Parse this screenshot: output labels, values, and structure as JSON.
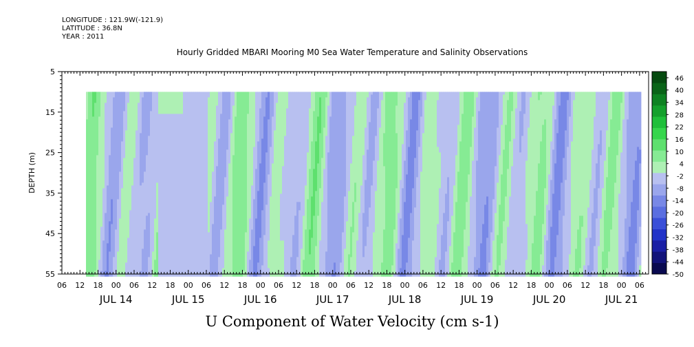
{
  "header": {
    "longitude": "LONGITUDE : 121.9W(-121.9)",
    "latitude": "LATITUDE : 36.8N",
    "year": "YEAR : 2011"
  },
  "chart_data": {
    "type": "heatmap",
    "title": "Hourly Gridded MBARI Mooring M0 Sea Water Temperature and Salinity Observations",
    "xlabel": "U Component of Water Velocity (cm s-1)",
    "ylabel": "DEPTH (m)",
    "ylim": [
      55,
      5
    ],
    "xlim": [
      "2011-07-13 06:00",
      "2011-07-21 09:00"
    ],
    "y_ticks": [
      "5",
      "15",
      "25",
      "35",
      "45",
      "55"
    ],
    "x_hour_labels": [
      "06",
      "12",
      "18",
      "00",
      "06",
      "12",
      "18",
      "00",
      "06",
      "12",
      "18",
      "00",
      "06",
      "12",
      "18",
      "00",
      "06",
      "12",
      "18",
      "00",
      "06",
      "12",
      "18",
      "00",
      "06",
      "12",
      "18",
      "00",
      "06",
      "12",
      "18",
      "00",
      "06"
    ],
    "x_day_labels": [
      "JUL 14",
      "JUL 15",
      "JUL 16",
      "JUL 17",
      "JUL 18",
      "JUL 19",
      "JUL 20",
      "JUL 21"
    ],
    "data_depth_range": [
      10,
      55
    ],
    "data_time_start": "2011-07-13 14:00",
    "colorbar": {
      "labels": [
        "46",
        "40",
        "34",
        "28",
        "22",
        "16",
        "10",
        "4",
        "-2",
        "-8",
        "-14",
        "-20",
        "-26",
        "-32",
        "-38",
        "-44",
        "-50"
      ],
      "range": [
        -50,
        49
      ],
      "colors": [
        "#0a0a50",
        "#12137a",
        "#1a1fa5",
        "#2233c8",
        "#3a4fd8",
        "#5a6ee0",
        "#7888e6",
        "#9aa6ec",
        "#b8c0f0",
        "#aef0b4",
        "#86eb94",
        "#5ee06e",
        "#36d64c",
        "#1fbf3a",
        "#14a02c",
        "#0e8222",
        "#0a6418",
        "#064a10"
      ],
      "grid": false
    },
    "grid": false,
    "legend": "right"
  }
}
